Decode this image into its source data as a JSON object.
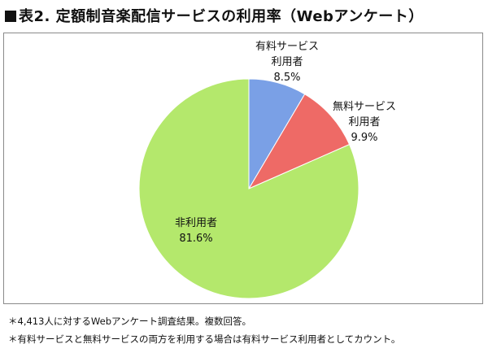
{
  "title": "表2. 定額制音楽配信サービスの利用率（Webアンケート）",
  "chart_data": {
    "type": "pie",
    "title": "表2. 定額制音楽配信サービスの利用率（Webアンケート）",
    "slices": [
      {
        "label_lines": [
          "有料サービス",
          "利用者"
        ],
        "value_text": "8.5%",
        "value": 8.5,
        "color": "#7aa0e6"
      },
      {
        "label_lines": [
          "無料サービス",
          "利用者"
        ],
        "value_text": "9.9%",
        "value": 9.9,
        "color": "#ee6a66"
      },
      {
        "label_lines": [
          "非利用者"
        ],
        "value_text": "81.6%",
        "value": 81.6,
        "color": "#b4e86c"
      }
    ],
    "start": "12 o'clock",
    "direction": "clockwise"
  },
  "notes": [
    "＊4,413人に対するWebアンケート調査結果。複数回答。",
    "＊有料サービスと無料サービスの両方を利用する場合は有料サービス利用者としてカウント。"
  ]
}
